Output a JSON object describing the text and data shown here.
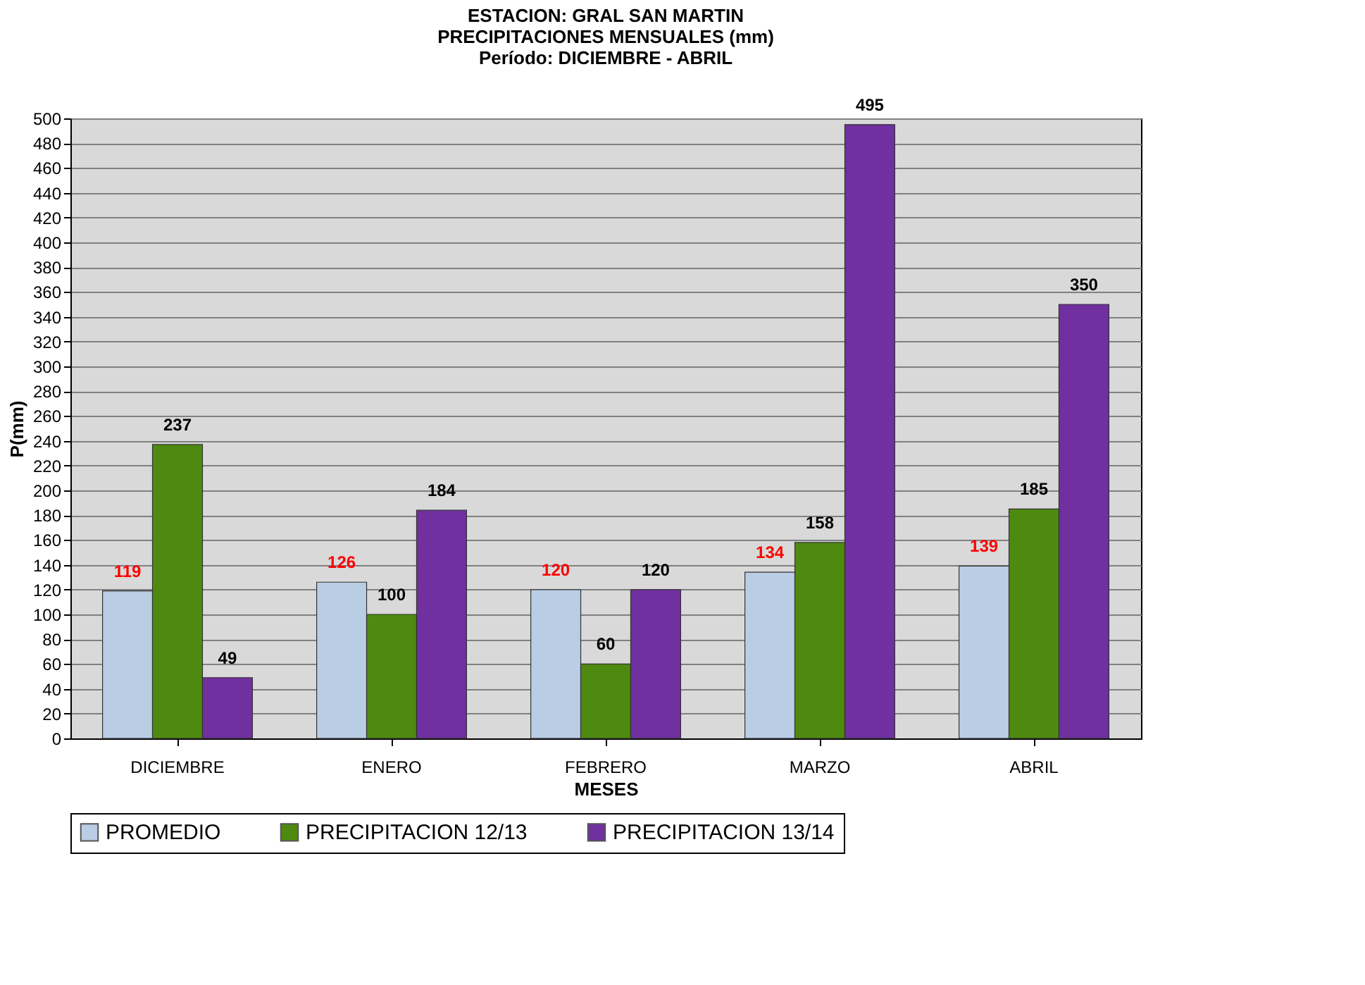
{
  "chart_data": {
    "type": "bar",
    "title": "ESTACION:  GRAL SAN MARTIN\nPRECIPITACIONES MENSUALES (mm)\nPeríodo: DICIEMBRE - ABRIL",
    "xlabel": "MESES",
    "ylabel": "P(mm)",
    "categories": [
      "DICIEMBRE",
      "ENERO",
      "FEBRERO",
      "MARZO",
      "ABRIL"
    ],
    "series": [
      {
        "name": "PROMEDIO",
        "color": "#b9cde5",
        "values": [
          119,
          126,
          120,
          134,
          139
        ]
      },
      {
        "name": "PRECIPITACION 12/13",
        "color": "#4f8a10",
        "values": [
          237,
          100,
          60,
          158,
          185
        ]
      },
      {
        "name": "PRECIPITACION 13/14",
        "color": "#7030a0",
        "values": [
          49,
          184,
          120,
          495,
          350
        ]
      }
    ],
    "ylim": [
      0,
      500
    ],
    "yticks": [
      0,
      20,
      40,
      60,
      80,
      100,
      120,
      140,
      160,
      180,
      200,
      220,
      240,
      260,
      280,
      300,
      320,
      340,
      360,
      380,
      400,
      420,
      440,
      460,
      480,
      500
    ],
    "grid": "y",
    "legend": "bottom",
    "data_labels": true
  }
}
